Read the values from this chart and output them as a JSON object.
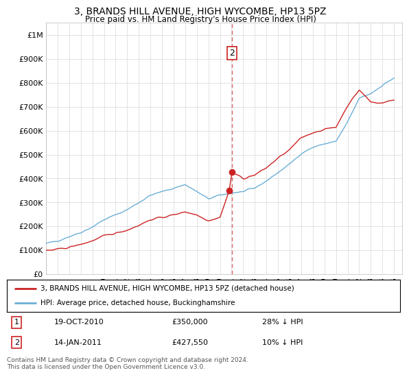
{
  "title": "3, BRANDS HILL AVENUE, HIGH WYCOMBE, HP13 5PZ",
  "subtitle": "Price paid vs. HM Land Registry's House Price Index (HPI)",
  "hpi_color": "#6baed6",
  "price_color": "#cc2222",
  "dashed_line_color": "#cc2222",
  "background_color": "#ffffff",
  "grid_color": "#d8d8d8",
  "legend_label_red": "3, BRANDS HILL AVENUE, HIGH WYCOMBE, HP13 5PZ (detached house)",
  "legend_label_blue": "HPI: Average price, detached house, Buckinghamshire",
  "transaction1_label": "1",
  "transaction1_date_str": "19-OCT-2010",
  "transaction1_price_str": "£350,000",
  "transaction1_note": "28% ↓ HPI",
  "transaction1_year": 2010.79,
  "transaction1_value": 350000,
  "transaction2_label": "2",
  "transaction2_date_str": "14-JAN-2011",
  "transaction2_price_str": "£427,550",
  "transaction2_note": "10% ↓ HPI",
  "transaction2_year": 2011.04,
  "transaction2_value": 427550,
  "dashed_line_x": 2011.04,
  "footer": "Contains HM Land Registry data © Crown copyright and database right 2024.\nThis data is licensed under the Open Government Licence v3.0.",
  "xlim": [
    1995.0,
    2025.7
  ],
  "ylim": [
    0,
    1050000
  ],
  "yticks": [
    0,
    100000,
    200000,
    300000,
    400000,
    500000,
    600000,
    700000,
    800000,
    900000,
    1000000
  ],
  "ytick_labels": [
    "£0",
    "£100K",
    "£200K",
    "£300K",
    "£400K",
    "£500K",
    "£600K",
    "£700K",
    "£800K",
    "£900K",
    "£1M"
  ],
  "xtick_years": [
    1995,
    1996,
    1997,
    1998,
    1999,
    2000,
    2001,
    2002,
    2003,
    2004,
    2005,
    2006,
    2007,
    2008,
    2009,
    2010,
    2011,
    2012,
    2013,
    2014,
    2015,
    2016,
    2017,
    2018,
    2019,
    2020,
    2021,
    2022,
    2023,
    2024,
    2025
  ],
  "hpi_anchor_years": [
    1995,
    1996,
    1997,
    1998,
    1999,
    2000,
    2001,
    2002,
    2003,
    2004,
    2005,
    2006,
    2007,
    2008,
    2009,
    2010,
    2011,
    2012,
    2013,
    2014,
    2015,
    2016,
    2017,
    2018,
    2019,
    2020,
    2021,
    2022,
    2023,
    2024,
    2025
  ],
  "hpi_anchor_values": [
    128000,
    140000,
    158000,
    175000,
    198000,
    228000,
    248000,
    270000,
    300000,
    330000,
    345000,
    360000,
    375000,
    345000,
    315000,
    330000,
    340000,
    345000,
    360000,
    390000,
    425000,
    460000,
    505000,
    530000,
    545000,
    555000,
    635000,
    735000,
    755000,
    790000,
    820000
  ],
  "price_anchor_years": [
    1995,
    1996,
    1997,
    1998,
    1999,
    2000,
    2001,
    2002,
    2003,
    2004,
    2005,
    2006,
    2007,
    2008,
    2009,
    2010,
    2010.79,
    2011.04,
    2012,
    2013,
    2014,
    2015,
    2016,
    2017,
    2018,
    2019,
    2020,
    2021,
    2022,
    2023,
    2024,
    2025
  ],
  "price_anchor_values": [
    98000,
    104000,
    113000,
    125000,
    140000,
    160000,
    172000,
    185000,
    205000,
    228000,
    238000,
    248000,
    262000,
    248000,
    225000,
    238000,
    350000,
    427550,
    400000,
    415000,
    445000,
    485000,
    520000,
    570000,
    592000,
    605000,
    615000,
    705000,
    770000,
    720000,
    715000,
    730000
  ]
}
